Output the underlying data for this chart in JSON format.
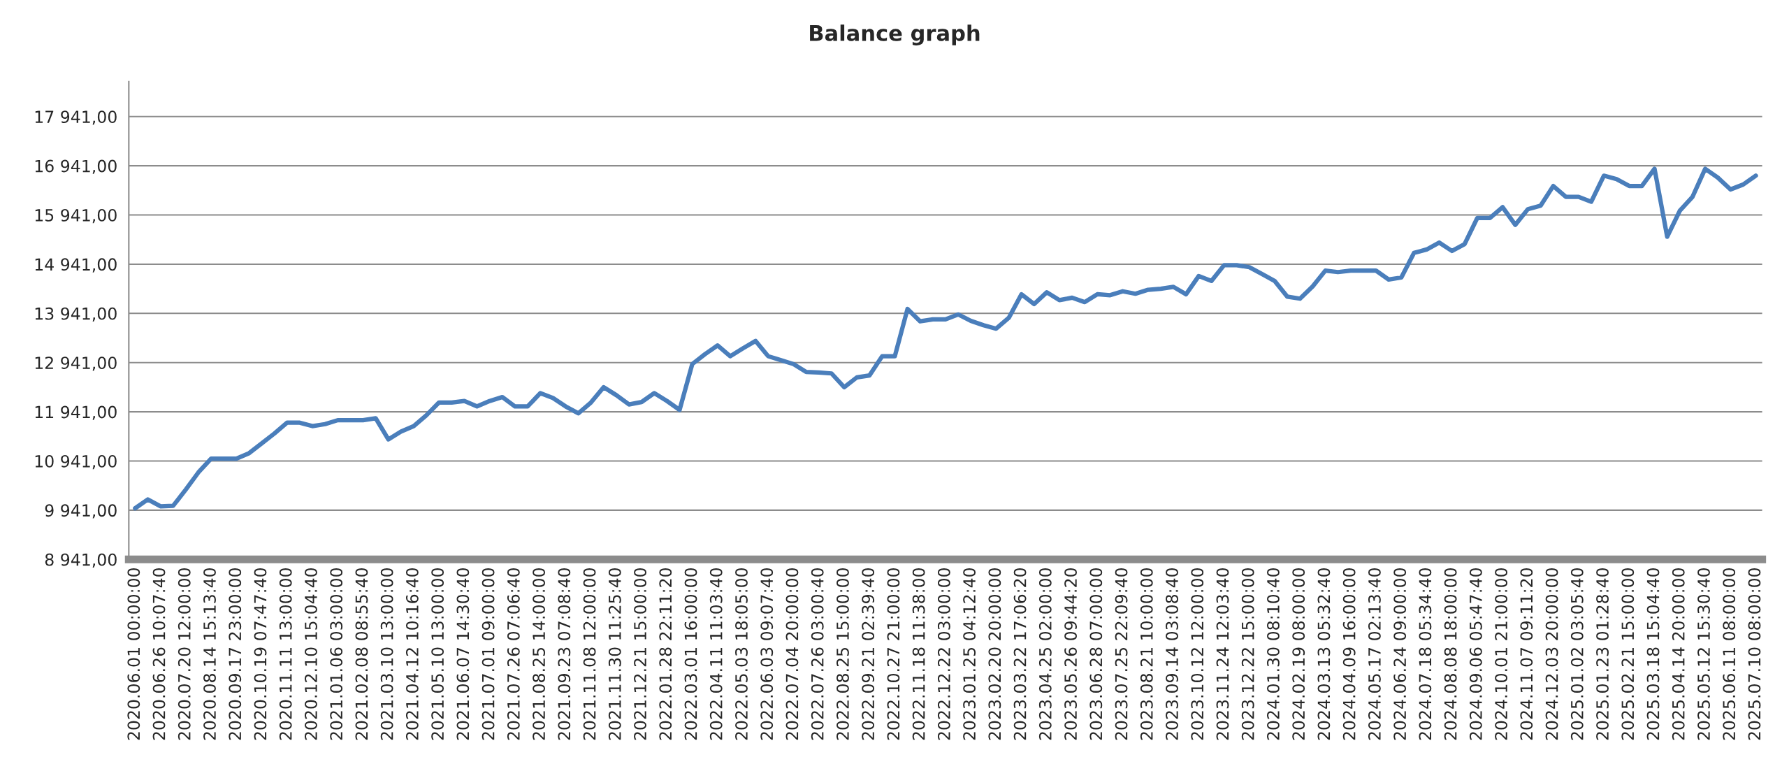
{
  "chart_data": {
    "type": "line",
    "title": "Balance graph",
    "categories": [
      "2020.06.01 00:00:00",
      null,
      "2020.06.26 10:07:40",
      null,
      "2020.07.20 12:00:00",
      null,
      "2020.08.14 15:13:40",
      null,
      "2020.09.17 23:00:00",
      null,
      "2020.10.19 07:47:40",
      null,
      "2020.11.11 13:00:00",
      null,
      "2020.12.10 15:04:40",
      null,
      "2021.01.06 03:00:00",
      null,
      "2021.02.08 08:55:40",
      null,
      "2021.03.10 13:00:00",
      null,
      "2021.04.12 10:16:40",
      null,
      "2021.05.10 13:00:00",
      null,
      "2021.06.07 14:30:40",
      null,
      "2021.07.01 09:00:00",
      null,
      "2021.07.26 07:06:40",
      null,
      "2021.08.25 14:00:00",
      null,
      "2021.09.23 07:08:40",
      null,
      "2021.11.08 12:00:00",
      null,
      "2021.11.30 11:25:40",
      null,
      "2021.12.21 15:00:00",
      null,
      "2022.01.28 22:11:20",
      null,
      "2022.03.01 16:00:00",
      null,
      "2022.04.11 11:03:40",
      null,
      "2022.05.03 18:05:00",
      null,
      "2022.06.03 09:07:40",
      null,
      "2022.07.04 20:00:00",
      null,
      "2022.07.26 03:00:40",
      null,
      "2022.08.25 15:00:00",
      null,
      "2022.09.21 02:39:40",
      null,
      "2022.10.27 21:00:00",
      null,
      "2022.11.18 11:38:00",
      null,
      "2022.12.22 03:00:00",
      null,
      "2023.01.25 04:12:40",
      null,
      "2023.02.20 20:00:00",
      null,
      "2023.03.22 17:06:20",
      null,
      "2023.04.25 02:00:00",
      null,
      "2023.05.26 09:44:20",
      null,
      "2023.06.28 07:00:00",
      null,
      "2023.07.25 22:09:40",
      null,
      "2023.08.21 10:00:00",
      null,
      "2023.09.14 03:08:40",
      null,
      "2023.10.12 12:00:00",
      null,
      "2023.11.24 12:03:40",
      null,
      "2023.12.22 15:00:00",
      null,
      "2024.01.30 08:10:40",
      null,
      "2024.02.19 08:00:00",
      null,
      "2024.03.13 05:32:40",
      null,
      "2024.04.09 16:00:00",
      null,
      "2024.05.17 02:13:40",
      null,
      "2024.06.24 09:00:00",
      null,
      "2024.07.18 05:34:40",
      null,
      "2024.08.08 18:00:00",
      null,
      "2024.09.06 05:47:40",
      null,
      "2024.10.01 21:00:00",
      null,
      "2024.11.07 09:11:20",
      null,
      "2024.12.03 20:00:00",
      null,
      "2025.01.02 03:05:40",
      null,
      "2025.01.23 01:28:40",
      null,
      "2025.02.21 15:00:00",
      null,
      "2025.03.18 15:04:40",
      null,
      "2025.04.14 20:00:00",
      null,
      "2025.05.12 15:30:40",
      null,
      "2025.06.11 08:00:00",
      null,
      "2025.07.10 08:00:00"
    ],
    "series": [
      {
        "color": "#4a7ebb",
        "values": [
          9980,
          10160,
          10020,
          10030,
          10360,
          10710,
          10990,
          10990,
          10990,
          11100,
          11300,
          11500,
          11720,
          11720,
          11650,
          11690,
          11770,
          11770,
          11770,
          11810,
          11380,
          11540,
          11650,
          11870,
          12130,
          12130,
          12160,
          12050,
          12160,
          12240,
          12050,
          12050,
          12320,
          12220,
          12050,
          11910,
          12130,
          12440,
          12280,
          12090,
          12140,
          12320,
          12160,
          11980,
          12910,
          13110,
          13290,
          13070,
          13230,
          13380,
          13070,
          12990,
          12910,
          12750,
          12740,
          12720,
          12440,
          12640,
          12680,
          13070,
          13070,
          14030,
          13780,
          13820,
          13820,
          13920,
          13790,
          13700,
          13630,
          13850,
          14330,
          14130,
          14370,
          14210,
          14260,
          14170,
          14330,
          14310,
          14390,
          14340,
          14420,
          14440,
          14480,
          14330,
          14700,
          14600,
          14920,
          14920,
          14880,
          14740,
          14600,
          14280,
          14240,
          14490,
          14810,
          14780,
          14810,
          14810,
          14810,
          14630,
          14670,
          15170,
          15240,
          15380,
          15210,
          15350,
          15880,
          15880,
          16100,
          15740,
          16060,
          16130,
          16530,
          16310,
          16310,
          16210,
          16740,
          16670,
          16530,
          16530,
          16880,
          15500,
          16030,
          16310,
          16880,
          16700,
          16460,
          16560,
          16740
        ]
      }
    ],
    "ylim": [
      8941,
      18650
    ],
    "yticks": [
      {
        "value": 8941,
        "label": "8 941,00"
      },
      {
        "value": 9941,
        "label": "9 941,00"
      },
      {
        "value": 10941,
        "label": "10 941,00"
      },
      {
        "value": 11941,
        "label": "11 941,00"
      },
      {
        "value": 12941,
        "label": "12 941,00"
      },
      {
        "value": 13941,
        "label": "13 941,00"
      },
      {
        "value": 14941,
        "label": "14 941,00"
      },
      {
        "value": 15941,
        "label": "15 941,00"
      },
      {
        "value": 16941,
        "label": "16 941,00"
      },
      {
        "value": 17941,
        "label": "17 941,00"
      }
    ],
    "grid": "y",
    "marker": "none",
    "line_style": "solid"
  }
}
